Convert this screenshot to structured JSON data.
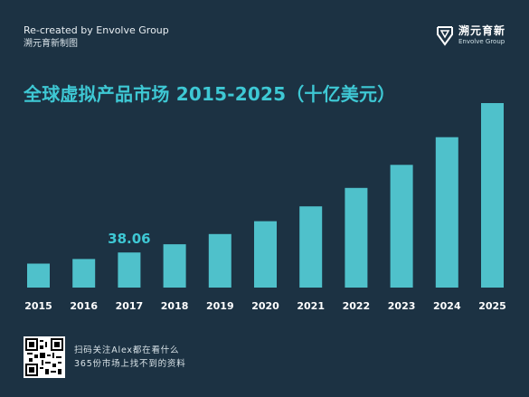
{
  "header": {
    "credit_line1": "Re-created by Envolve Group",
    "credit_line2": "溯元育新制图",
    "brand_cn": "溯元育新",
    "brand_en": "Envolve Group"
  },
  "footer": {
    "line1": "扫码关注Alex都在看什么",
    "line2": "365份市场上找不到的资料"
  },
  "colors": {
    "background": "#1c3243",
    "bar": "#4fc1cb",
    "accent": "#3ec8d4"
  },
  "chart_data": {
    "type": "bar",
    "title": "全球虚拟产品市场 2015-2025（十亿美元）",
    "categories": [
      "2015",
      "2016",
      "2017",
      "2018",
      "2019",
      "2020",
      "2021",
      "2022",
      "2023",
      "2024",
      "2025"
    ],
    "values": [
      26,
      31,
      38.06,
      47,
      58,
      72,
      88,
      108,
      133,
      163,
      200
    ],
    "data_labels": [
      {
        "category": "2017",
        "text": "38.06"
      }
    ],
    "ylim": [
      0,
      200
    ],
    "grid": false,
    "legend": "none",
    "xlabel": "",
    "ylabel": ""
  }
}
